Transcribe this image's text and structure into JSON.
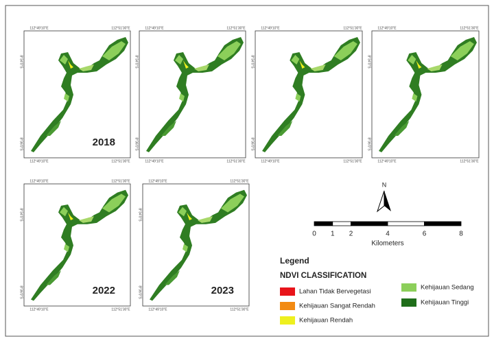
{
  "coordinates": {
    "longitudes": [
      "112°49'10\"E",
      "112°51'30\"E"
    ],
    "latitudes": [
      "8°34'0\"S",
      "8°36'0\"S"
    ]
  },
  "panels": [
    {
      "year": "2018"
    },
    {},
    {},
    {},
    {
      "year": "2022"
    },
    {
      "year": "2023"
    }
  ],
  "north_arrow": "N",
  "scale_bar": {
    "ticks": [
      0,
      1,
      2,
      4,
      6,
      8
    ],
    "unit": "Kilometers"
  },
  "legend": {
    "title": "Legend",
    "subtitle": "NDVI CLASSIFICATION",
    "items": [
      {
        "label": "Lahan Tidak Bervegetasi",
        "color": "#e8141a"
      },
      {
        "label": "Kehijauan Sangat Rendah",
        "color": "#f28a12"
      },
      {
        "label": "Kehijauan Rendah",
        "color": "#eef01e"
      },
      {
        "label": "Kehijauan Sedang",
        "color": "#8ccf5a"
      },
      {
        "label": "Kehijauan Tinggi",
        "color": "#1f6e1a"
      }
    ]
  }
}
